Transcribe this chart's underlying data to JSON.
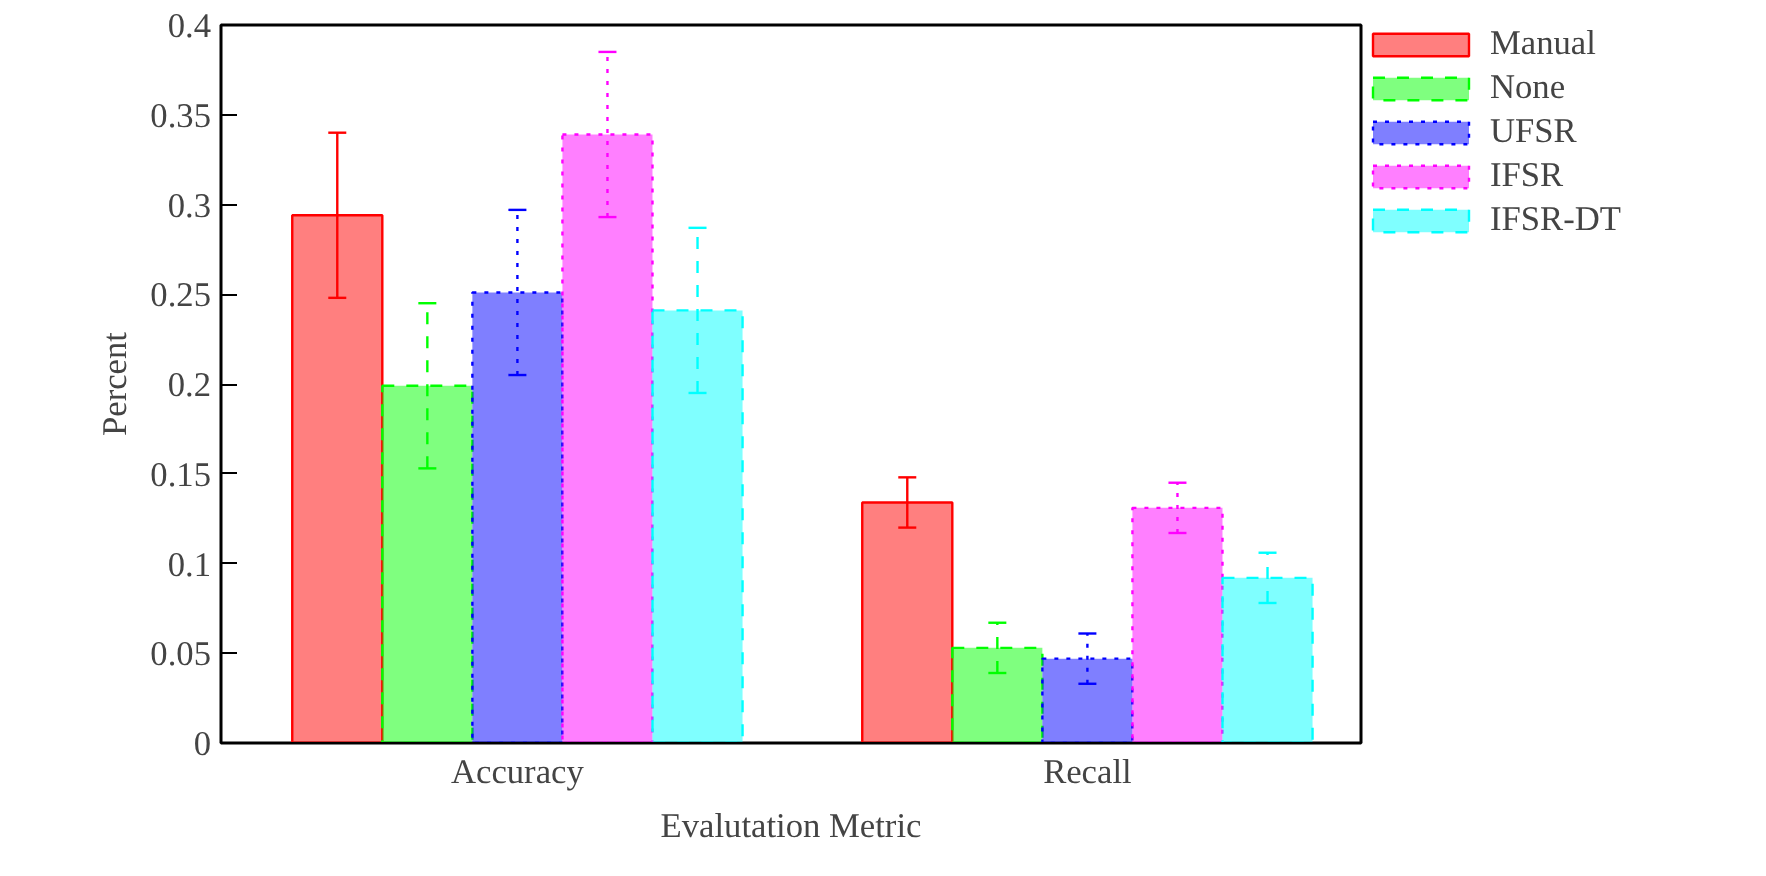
{
  "chart_data": {
    "type": "bar",
    "xlabel": "Evalutation Metric",
    "ylabel": "Percent",
    "categories": [
      "Accuracy",
      "Recall"
    ],
    "series": [
      {
        "name": "Manual",
        "color": "#ff0000",
        "line_style": "solid",
        "values": [
          0.294,
          0.134
        ],
        "errors": [
          0.046,
          0.014
        ]
      },
      {
        "name": "None",
        "color": "#00ff00",
        "line_style": "dashed",
        "values": [
          0.199,
          0.053
        ],
        "errors": [
          0.046,
          0.014
        ]
      },
      {
        "name": "UFSR",
        "color": "#0000ff",
        "line_style": "dotted",
        "values": [
          0.251,
          0.047
        ],
        "errors": [
          0.046,
          0.014
        ]
      },
      {
        "name": "IFSR",
        "color": "#ff00ff",
        "line_style": "dotted",
        "values": [
          0.339,
          0.131
        ],
        "errors": [
          0.046,
          0.014
        ]
      },
      {
        "name": "IFSR-DT",
        "color": "#00ffff",
        "line_style": "dashed",
        "values": [
          0.241,
          0.092
        ],
        "errors": [
          0.046,
          0.014
        ]
      }
    ],
    "ylim": [
      0,
      0.4
    ],
    "yticks": [
      0,
      0.05,
      0.1,
      0.15,
      0.2,
      0.25,
      0.3,
      0.35,
      0.4
    ],
    "grid": false,
    "legend": "right"
  }
}
